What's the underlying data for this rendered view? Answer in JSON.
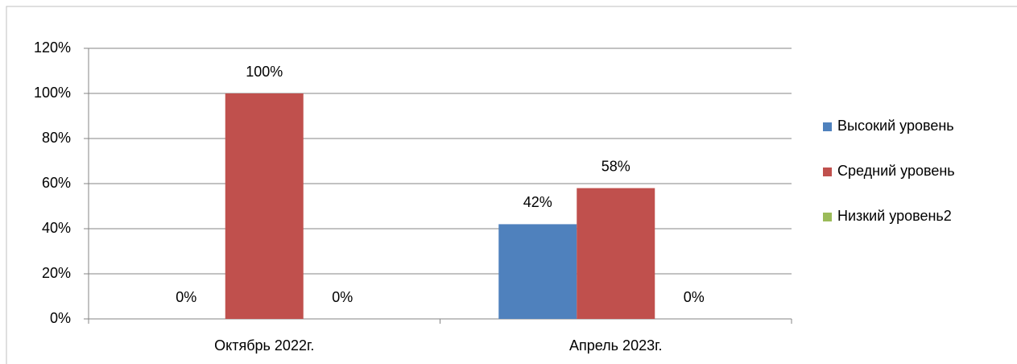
{
  "chart_data": {
    "type": "bar",
    "categories": [
      "Октябрь 2022г.",
      "Апрель 2023г."
    ],
    "series": [
      {
        "name": "Высокий уровень",
        "color": "#4f81bd",
        "values": [
          0,
          42
        ],
        "value_labels": [
          "0%",
          "42%"
        ]
      },
      {
        "name": "Средний уровень",
        "color": "#c0504d",
        "values": [
          100,
          58
        ],
        "value_labels": [
          "100%",
          "58%"
        ]
      },
      {
        "name": "Низкий уровень2",
        "color": "#9bbb59",
        "values": [
          0,
          0
        ],
        "value_labels": [
          "0%",
          "0%"
        ]
      }
    ],
    "ylim": [
      0,
      120
    ],
    "yticks": [
      {
        "value": 0,
        "label": "0%"
      },
      {
        "value": 20,
        "label": "20%"
      },
      {
        "value": 40,
        "label": "40%"
      },
      {
        "value": 60,
        "label": "60%"
      },
      {
        "value": 80,
        "label": "80%"
      },
      {
        "value": 100,
        "label": "100%"
      },
      {
        "value": 120,
        "label": "120%"
      }
    ],
    "grid": true,
    "legend": "right"
  }
}
